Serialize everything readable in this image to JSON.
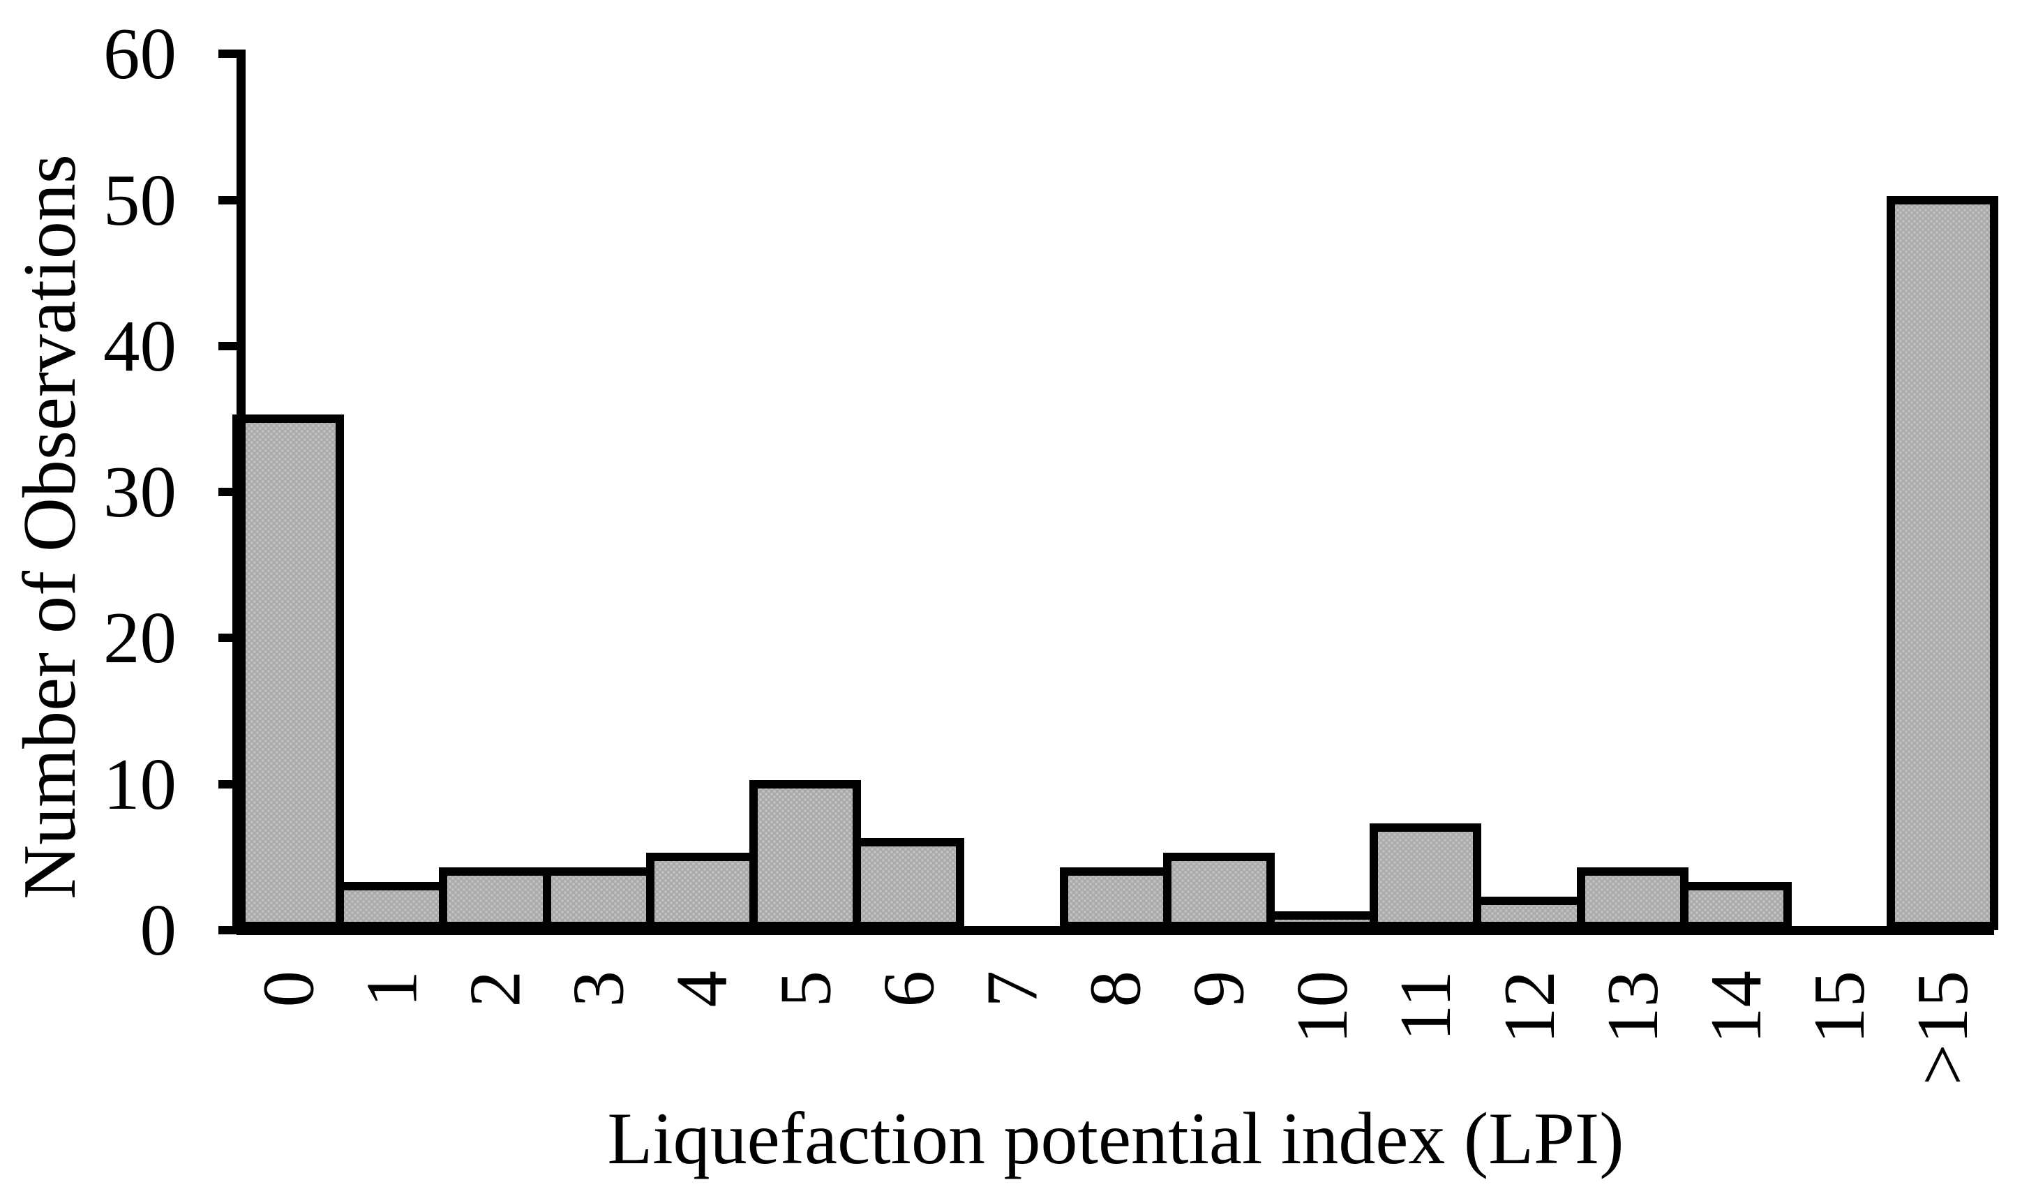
{
  "chart_data": {
    "type": "bar",
    "title": "",
    "xlabel": "Liquefaction potential index (LPI)",
    "ylabel": "Number of Observations",
    "categories": [
      "0",
      "1",
      "2",
      "3",
      "4",
      "5",
      "6",
      "7",
      "8",
      "9",
      "10",
      "11",
      "12",
      "13",
      "14",
      "15",
      ">15"
    ],
    "values": [
      35,
      3,
      4,
      4,
      5,
      10,
      6,
      0,
      4,
      5,
      1,
      7,
      2,
      4,
      3,
      0,
      50
    ],
    "ylim": [
      0,
      60
    ],
    "yticks": [
      0,
      10,
      20,
      30,
      40,
      50,
      60
    ],
    "grid": false,
    "legend_position": "none",
    "colors": {
      "background": "#ffffff",
      "axis": "#000000",
      "bar_fill": "#c5c5c5",
      "bar_pattern_dot": "#a9a9a9",
      "bar_border": "#000000",
      "text": "#000000"
    }
  }
}
